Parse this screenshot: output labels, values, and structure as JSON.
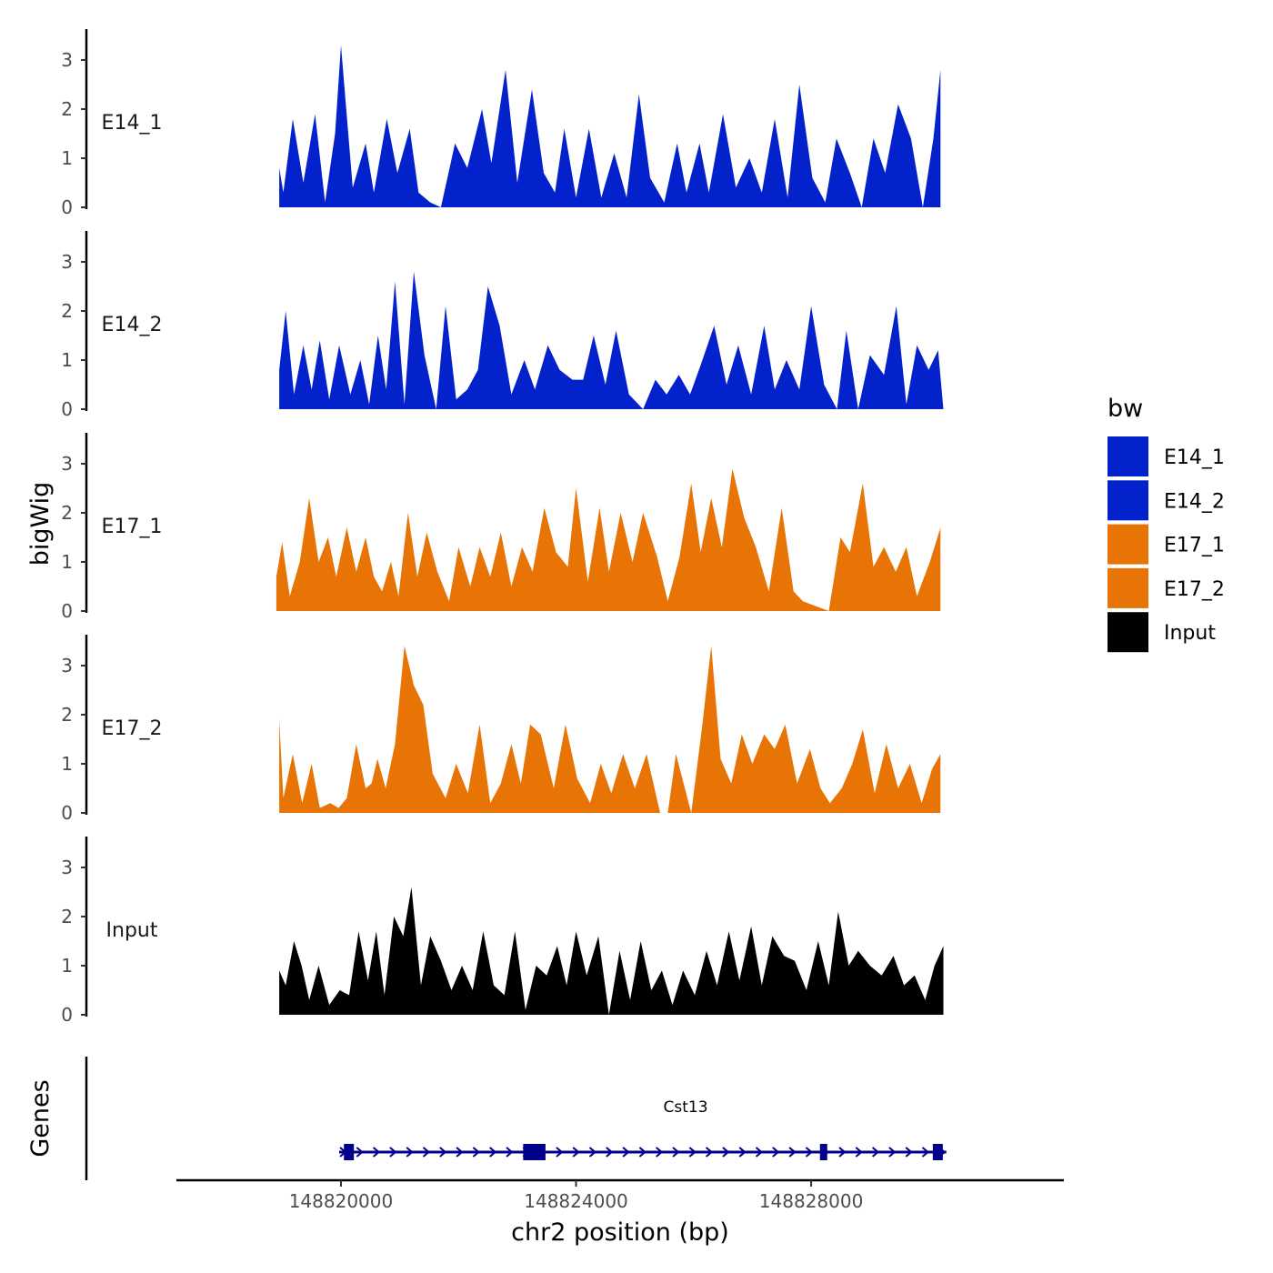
{
  "chart_data": {
    "type": "area",
    "title": "",
    "xlabel": "chr2 position (bp)",
    "ylabel": "bigWig",
    "genes_label": "Genes",
    "xlim": [
      148817200,
      148832300
    ],
    "x_ticks": [
      148820000,
      148824000,
      148828000
    ],
    "x_tick_labels": [
      "148820000",
      "148824000",
      "148828000"
    ],
    "ylim": [
      0,
      3.5
    ],
    "y_ticks": [
      0,
      1,
      2,
      3
    ],
    "y_tick_labels": [
      "0",
      "1",
      "2",
      "3"
    ],
    "tracks": [
      {
        "name": "E14_1",
        "color": "#0422CC",
        "x": [
          148818950,
          148819020,
          148819180,
          148819360,
          148819560,
          148819730,
          148819900,
          148820000,
          148820200,
          148820420,
          148820560,
          148820780,
          148820960,
          148821170,
          148821320,
          148821520,
          148821700,
          148821940,
          148822150,
          148822400,
          148822560,
          148822800,
          148823000,
          148823250,
          148823450,
          148823640,
          148823800,
          148824000,
          148824220,
          148824430,
          148824650,
          148824860,
          148825070,
          148825260,
          148825500,
          148825720,
          148825880,
          148826100,
          148826260,
          148826500,
          148826720,
          148826950,
          148827160,
          148827380,
          148827600,
          148827800,
          148828020,
          148828240,
          148828430,
          148828660,
          148828860,
          148829060,
          148829260,
          148829480,
          148829700,
          148829900,
          148830080,
          148830200
        ],
        "values": [
          0.8,
          0.3,
          1.8,
          0.5,
          1.9,
          0.1,
          1.5,
          3.3,
          0.4,
          1.3,
          0.3,
          1.8,
          0.7,
          1.6,
          0.3,
          0.1,
          0.0,
          1.3,
          0.8,
          2.0,
          0.9,
          2.8,
          0.5,
          2.4,
          0.7,
          0.3,
          1.6,
          0.2,
          1.6,
          0.2,
          1.1,
          0.2,
          2.3,
          0.6,
          0.1,
          1.3,
          0.3,
          1.3,
          0.3,
          1.9,
          0.4,
          1.0,
          0.3,
          1.8,
          0.2,
          2.5,
          0.6,
          0.1,
          1.4,
          0.7,
          0.0,
          1.4,
          0.7,
          2.1,
          1.4,
          0.0,
          1.4,
          2.8
        ]
      },
      {
        "name": "E14_2",
        "color": "#0422CC",
        "x": [
          148818950,
          148819060,
          148819200,
          148819360,
          148819500,
          148819640,
          148819800,
          148819970,
          148820160,
          148820330,
          148820480,
          148820630,
          148820770,
          148820920,
          148821080,
          148821240,
          148821420,
          148821620,
          148821780,
          148821960,
          148822150,
          148822330,
          148822500,
          148822700,
          148822900,
          148823120,
          148823300,
          148823520,
          148823720,
          148823940,
          148824120,
          148824300,
          148824500,
          148824680,
          148824900,
          148825140,
          148825350,
          148825540,
          148825750,
          148825940,
          148826120,
          148826350,
          148826560,
          148826760,
          148826980,
          148827200,
          148827380,
          148827580,
          148827800,
          148828000,
          148828220,
          148828440,
          148828600,
          148828800,
          148829000,
          148829240,
          148829450,
          148829620,
          148829800,
          148830000,
          148830160,
          148830250
        ],
        "values": [
          0.8,
          2.0,
          0.3,
          1.3,
          0.4,
          1.4,
          0.2,
          1.3,
          0.3,
          1.0,
          0.1,
          1.5,
          0.4,
          2.6,
          0.1,
          2.8,
          1.1,
          0.0,
          2.1,
          0.2,
          0.4,
          0.8,
          2.5,
          1.7,
          0.3,
          1.0,
          0.4,
          1.3,
          0.8,
          0.6,
          0.6,
          1.5,
          0.5,
          1.6,
          0.3,
          0.0,
          0.6,
          0.3,
          0.7,
          0.3,
          0.9,
          1.7,
          0.5,
          1.3,
          0.3,
          1.7,
          0.4,
          1.0,
          0.4,
          2.1,
          0.5,
          0.0,
          1.6,
          0.0,
          1.1,
          0.7,
          2.1,
          0.1,
          1.3,
          0.8,
          1.2,
          0.0
        ]
      },
      {
        "name": "E17_1",
        "color": "#E87405",
        "x": [
          148818900,
          148819000,
          148819130,
          148819300,
          148819460,
          148819620,
          148819780,
          148819920,
          148820100,
          148820260,
          148820420,
          148820560,
          148820700,
          148820850,
          148820980,
          148821140,
          148821300,
          148821460,
          148821640,
          148821840,
          148822000,
          148822200,
          148822360,
          148822540,
          148822720,
          148822900,
          148823080,
          148823260,
          148823460,
          148823660,
          148823860,
          148824000,
          148824200,
          148824400,
          148824560,
          148824760,
          148824960,
          148825140,
          148825380,
          148825560,
          148825760,
          148825960,
          148826120,
          148826300,
          148826480,
          148826660,
          148826860,
          148827060,
          148827280,
          148827500,
          148827700,
          148827860,
          148828080,
          148828300,
          148828500,
          148828660,
          148828880,
          148829060,
          148829240,
          148829440,
          148829620,
          148829800,
          148830020,
          148830200
        ],
        "values": [
          0.7,
          1.4,
          0.3,
          1.0,
          2.3,
          1.0,
          1.5,
          0.7,
          1.7,
          0.8,
          1.5,
          0.7,
          0.4,
          1.0,
          0.3,
          2.0,
          0.7,
          1.6,
          0.8,
          0.2,
          1.3,
          0.5,
          1.3,
          0.7,
          1.6,
          0.5,
          1.3,
          0.8,
          2.1,
          1.2,
          0.9,
          2.5,
          0.6,
          2.1,
          0.8,
          2.0,
          1.0,
          2.0,
          1.1,
          0.2,
          1.1,
          2.6,
          1.2,
          2.3,
          1.3,
          2.9,
          1.9,
          1.3,
          0.4,
          2.1,
          0.4,
          0.2,
          0.1,
          0.0,
          1.5,
          1.2,
          2.6,
          0.9,
          1.3,
          0.8,
          1.3,
          0.3,
          1.0,
          1.7
        ]
      },
      {
        "name": "E17_2",
        "color": "#E87405",
        "x": [
          148818950,
          148819020,
          148819180,
          148819340,
          148819500,
          148819640,
          148819820,
          148819960,
          148820100,
          148820260,
          148820420,
          148820520,
          148820620,
          148820760,
          148820920,
          148821080,
          148821240,
          148821400,
          148821560,
          148821780,
          148821960,
          148822160,
          148822360,
          148822540,
          148822720,
          148822900,
          148823060,
          148823220,
          148823400,
          148823620,
          148823820,
          148824020,
          148824240,
          148824420,
          148824600,
          148824800,
          148825000,
          148825200,
          148825430,
          148825560,
          148825700,
          148825960,
          148826140,
          148826300,
          148826460,
          148826640,
          148826820,
          148827000,
          148827200,
          148827380,
          148827560,
          148827760,
          148827980,
          148828160,
          148828320,
          148828520,
          148828700,
          148828880,
          148829080,
          148829280,
          148829480,
          148829680,
          148829880,
          148830060,
          148830200
        ],
        "values": [
          1.9,
          0.3,
          1.2,
          0.2,
          1.0,
          0.1,
          0.2,
          0.1,
          0.3,
          1.4,
          0.5,
          0.6,
          1.1,
          0.5,
          1.4,
          3.4,
          2.6,
          2.2,
          0.8,
          0.3,
          1.0,
          0.4,
          1.8,
          0.2,
          0.6,
          1.4,
          0.6,
          1.8,
          1.6,
          0.5,
          1.8,
          0.7,
          0.2,
          1.0,
          0.4,
          1.2,
          0.5,
          1.2,
          0.0,
          0.0,
          1.2,
          0.0,
          1.7,
          3.4,
          1.1,
          0.6,
          1.6,
          1.0,
          1.6,
          1.3,
          1.8,
          0.6,
          1.3,
          0.5,
          0.2,
          0.5,
          1.0,
          1.7,
          0.4,
          1.4,
          0.5,
          1.0,
          0.2,
          0.9,
          1.2
        ]
      },
      {
        "name": "Input",
        "color": "#000000",
        "x": [
          148818950,
          148819060,
          148819200,
          148819330,
          148819460,
          148819620,
          148819800,
          148819980,
          148820140,
          148820300,
          148820460,
          148820600,
          148820740,
          148820900,
          148821060,
          148821200,
          148821360,
          148821520,
          148821700,
          148821880,
          148822060,
          148822240,
          148822420,
          148822600,
          148822780,
          148822960,
          148823140,
          148823320,
          148823500,
          148823680,
          148823840,
          148824000,
          148824180,
          148824380,
          148824560,
          148824740,
          148824920,
          148825100,
          148825280,
          148825460,
          148825640,
          148825820,
          148826020,
          148826220,
          148826400,
          148826600,
          148826780,
          148826980,
          148827160,
          148827340,
          148827540,
          148827720,
          148827920,
          148828120,
          148828300,
          148828460,
          148828640,
          148828800,
          148829000,
          148829200,
          148829400,
          148829580,
          148829760,
          148829940,
          148830100,
          148830250
        ],
        "values": [
          0.9,
          0.6,
          1.5,
          1.0,
          0.3,
          1.0,
          0.2,
          0.5,
          0.4,
          1.7,
          0.7,
          1.7,
          0.4,
          2.0,
          1.6,
          2.6,
          0.6,
          1.6,
          1.1,
          0.5,
          1.0,
          0.5,
          1.7,
          0.6,
          0.4,
          1.7,
          0.1,
          1.0,
          0.8,
          1.4,
          0.6,
          1.7,
          0.8,
          1.6,
          0.0,
          1.3,
          0.3,
          1.5,
          0.5,
          0.9,
          0.2,
          0.9,
          0.4,
          1.3,
          0.6,
          1.7,
          0.7,
          1.8,
          0.6,
          1.6,
          1.2,
          1.1,
          0.5,
          1.5,
          0.6,
          2.1,
          1.0,
          1.3,
          1.0,
          0.8,
          1.2,
          0.6,
          0.8,
          0.3,
          1.0,
          1.4
        ]
      }
    ],
    "legend": {
      "title": "bw",
      "placement": "right",
      "entries": [
        {
          "label": "E14_1",
          "color": "#0422CC"
        },
        {
          "label": "E14_2",
          "color": "#0422CC"
        },
        {
          "label": "E17_1",
          "color": "#E87405"
        },
        {
          "label": "E17_2",
          "color": "#E87405"
        },
        {
          "label": "Input",
          "color": "#000000"
        }
      ]
    },
    "gene": {
      "name": "Cst13",
      "strand": "+",
      "color": "#00008B",
      "start": 148820000,
      "end": 148830300,
      "exons": [
        {
          "start": 148820050,
          "end": 148820220
        },
        {
          "start": 148823100,
          "end": 148823480
        },
        {
          "start": 148828150,
          "end": 148828270
        },
        {
          "start": 148830070,
          "end": 148830240
        }
      ]
    }
  }
}
